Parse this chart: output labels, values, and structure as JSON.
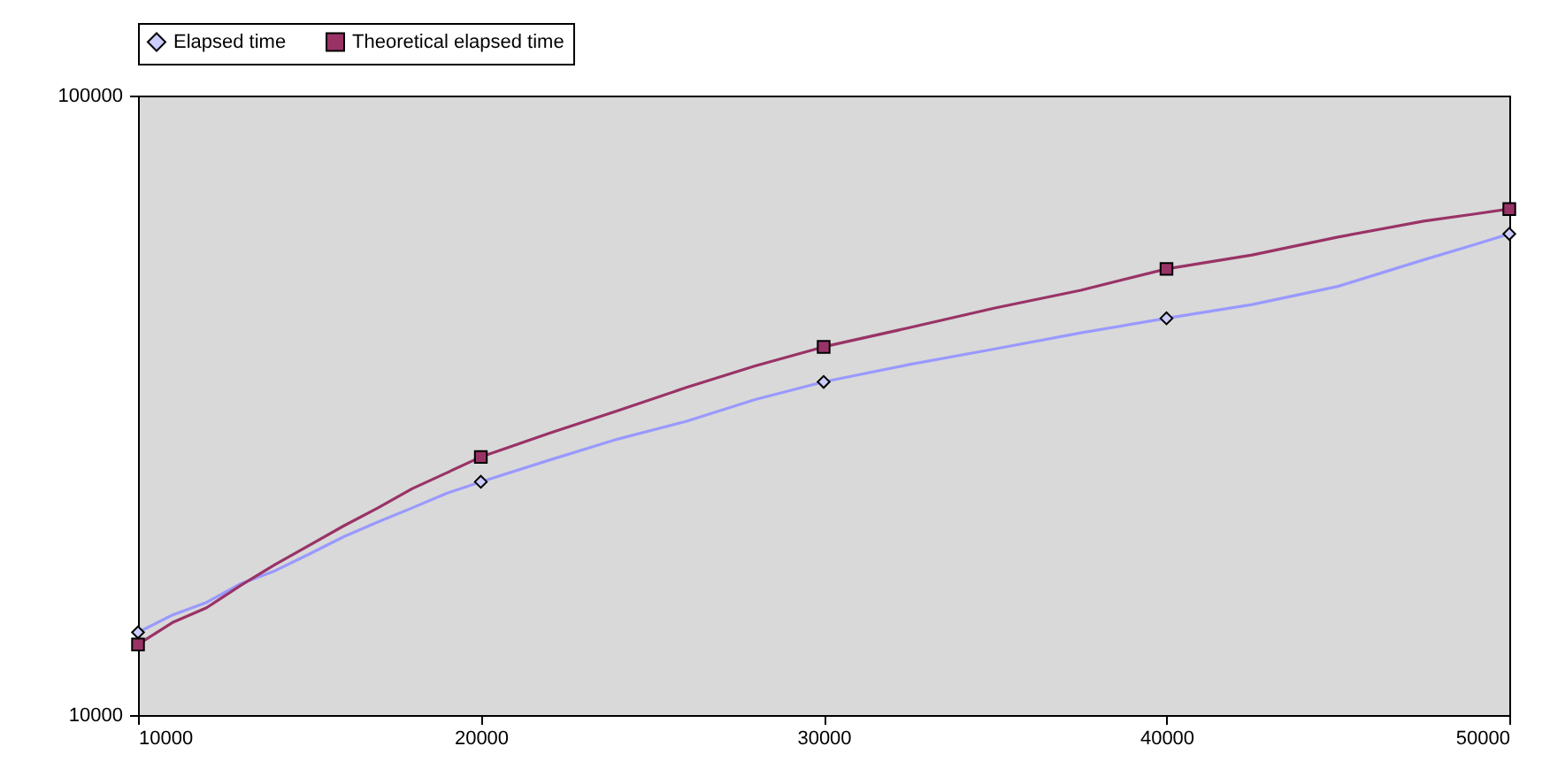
{
  "chart_data": {
    "type": "line",
    "legend": "top",
    "log": "y",
    "grid": false,
    "xlim": [
      10000,
      50000
    ],
    "xticks": [
      10000,
      20000,
      30000,
      40000,
      50000
    ],
    "ylim": [
      10000,
      100000
    ],
    "yticks": [
      10000,
      100000
    ],
    "series": [
      {
        "type": "line",
        "color": "#9999ff",
        "x": [
          10000,
          11000,
          12000,
          13000,
          14000,
          15000,
          16000,
          17000,
          18000,
          19000,
          20000,
          22000,
          24000,
          26000,
          28000,
          30000,
          32500,
          35000,
          37500,
          40000,
          42500,
          45000,
          47500,
          49000,
          50000
        ],
        "values": [
          13600,
          14500,
          15200,
          16300,
          17100,
          18200,
          19400,
          20500,
          21600,
          22800,
          23800,
          25800,
          27900,
          29800,
          32300,
          34500,
          36800,
          39000,
          41400,
          43700,
          46000,
          49200,
          54300,
          57500,
          59800
        ]
      },
      {
        "type": "line",
        "color": "#993366",
        "x": [
          10000,
          11000,
          12000,
          13000,
          14000,
          15000,
          16000,
          17000,
          18000,
          19000,
          20000,
          22000,
          24000,
          26000,
          28000,
          30000,
          32500,
          35000,
          37500,
          40000,
          42500,
          45000,
          47500,
          49000,
          50000
        ],
        "values": [
          13000,
          14100,
          14900,
          16200,
          17500,
          18800,
          20200,
          21600,
          23200,
          24600,
          26100,
          28500,
          31000,
          33800,
          36600,
          39300,
          42200,
          45400,
          48500,
          52500,
          55300,
          59100,
          62700,
          64400,
          65600
        ]
      },
      {
        "name": "Elapsed time",
        "type": "scatter",
        "marker": "diamond",
        "color": "#ccccff",
        "x": [
          10000,
          20000,
          30000,
          40000,
          50000
        ],
        "values": [
          13600,
          23800,
          34500,
          43700,
          59800
        ]
      },
      {
        "name": "Theoretical elapsed time",
        "type": "scatter",
        "marker": "square",
        "color": "#993366",
        "x": [
          10000,
          20000,
          30000,
          40000,
          50000
        ],
        "values": [
          13000,
          26100,
          39300,
          52500,
          65600
        ]
      }
    ]
  }
}
